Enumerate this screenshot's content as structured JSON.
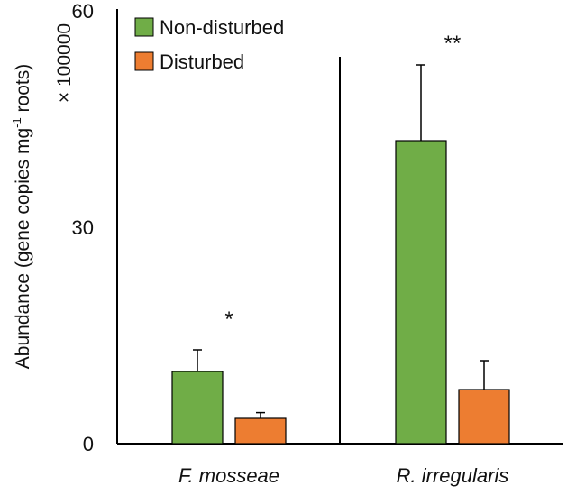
{
  "chart_data": {
    "type": "bar",
    "categories": [
      "F. mosseae",
      "R. irregularis"
    ],
    "series": [
      {
        "name": "Non-disturbed",
        "color": "#70AD47",
        "values": [
          10,
          42
        ],
        "errors": [
          3,
          10.5
        ]
      },
      {
        "name": "Disturbed",
        "color": "#ED7D31",
        "values": [
          3.5,
          7.5
        ],
        "errors": [
          0.8,
          4
        ]
      }
    ],
    "ylabel_main": "Abundance (gene copies mg",
    "ylabel_sup": "-1",
    "ylabel_end": " roots)",
    "ylabel_scale": "× 100000",
    "ylim": [
      0,
      60
    ],
    "yticks": [
      0,
      30,
      60
    ],
    "significance": [
      "*",
      "**"
    ],
    "legend_position": "top-left",
    "grid": false
  }
}
